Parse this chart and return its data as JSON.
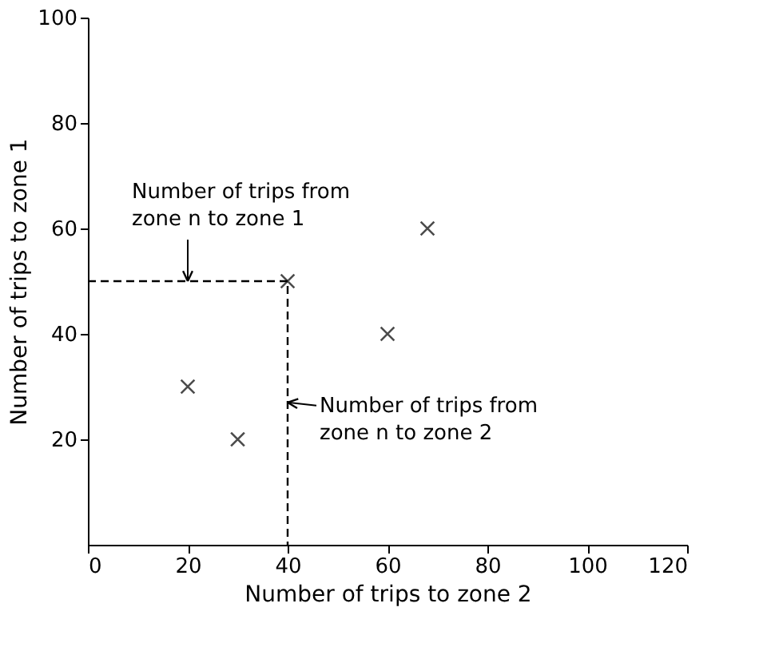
{
  "chart_data": {
    "type": "scatter",
    "xlabel": "Number of trips to zone 2",
    "ylabel": "Number of trips to zone 1",
    "xlim": [
      0,
      120
    ],
    "xticks": [
      0,
      20,
      40,
      60,
      80,
      100,
      120
    ],
    "ylim": [
      0,
      100
    ],
    "yticks": [
      20,
      40,
      60,
      80,
      100
    ],
    "grid": false,
    "marker": "cross",
    "series": [
      {
        "color": "#000000",
        "x": [
          20,
          30,
          40,
          60,
          68
        ],
        "values": [
          30,
          20,
          50,
          40,
          60
        ]
      },
      {
        "type": "line",
        "line_style": "dashed",
        "marker": "none",
        "color": "#000000",
        "x": [
          0,
          40,
          40
        ],
        "values": [
          50,
          50,
          0
        ]
      }
    ],
    "annotations": [
      {
        "text": "Number of trips from\nzone n to zone 1",
        "x": 20,
        "y": 50
      },
      {
        "text": "Number of trips from\nzone n to zone 2",
        "x": 40,
        "y": 27
      }
    ]
  }
}
